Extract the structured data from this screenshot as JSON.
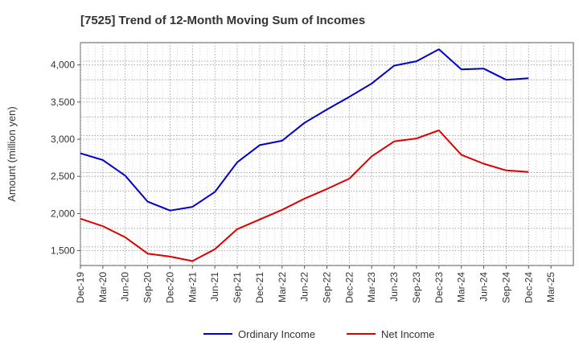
{
  "chart_data": {
    "type": "line",
    "title": "[7525]  Trend of 12-Month Moving Sum of Incomes",
    "xlabel": "",
    "ylabel": "Amount (million yen)",
    "ylim": [
      1300,
      4300
    ],
    "yticks": [
      1500,
      2000,
      2500,
      3000,
      3500,
      4000
    ],
    "ytick_labels": [
      "1,500",
      "2,000",
      "2,500",
      "3,000",
      "3,500",
      "4,000"
    ],
    "categories": [
      "Dec-19",
      "Mar-20",
      "Jun-20",
      "Sep-20",
      "Dec-20",
      "Mar-21",
      "Jun-21",
      "Sep-21",
      "Dec-21",
      "Mar-22",
      "Jun-22",
      "Sep-22",
      "Dec-22",
      "Mar-23",
      "Jun-23",
      "Sep-23",
      "Dec-23",
      "Mar-24",
      "Jun-24",
      "Sep-24",
      "Dec-24",
      "Mar-25"
    ],
    "grid": true,
    "legend_position": "bottom",
    "series": [
      {
        "name": "Ordinary Income",
        "color": "#0000cc",
        "values": [
          2810,
          2720,
          2510,
          2160,
          2040,
          2090,
          2290,
          2690,
          2920,
          2980,
          3220,
          3400,
          3570,
          3750,
          3990,
          4050,
          4210,
          3940,
          3950,
          3800,
          3820,
          null
        ]
      },
      {
        "name": "Net Income",
        "color": "#dd0000",
        "values": [
          1930,
          1830,
          1680,
          1460,
          1420,
          1360,
          1520,
          1790,
          1920,
          2050,
          2200,
          2330,
          2470,
          2770,
          2970,
          3010,
          3120,
          2790,
          2670,
          2580,
          2560,
          null
        ]
      }
    ]
  }
}
